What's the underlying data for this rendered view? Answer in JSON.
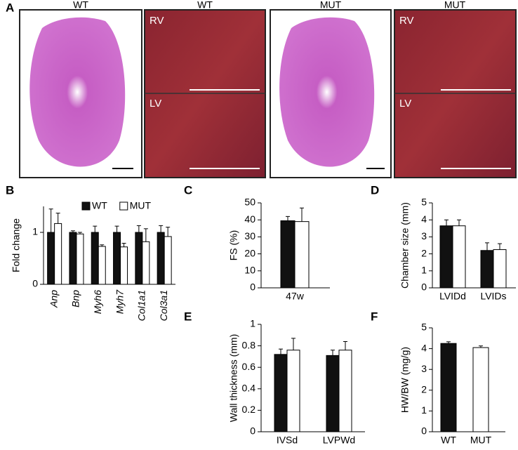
{
  "panel_a": {
    "letter": "A",
    "images": [
      {
        "label": "WT"
      },
      {
        "label": "WT",
        "top": "RV",
        "bottom": "LV"
      },
      {
        "label": "MUT"
      },
      {
        "label": "MUT",
        "top": "RV",
        "bottom": "LV"
      }
    ]
  },
  "chart_data": [
    {
      "type": "bar",
      "panel": "B",
      "ylabel": "Fold change",
      "categories": [
        "Anp",
        "Bnp",
        "Myh6",
        "Myh7",
        "Col1a1",
        "Col3a1"
      ],
      "series": [
        {
          "name": "WT",
          "color": "#111111",
          "values": [
            1,
            1,
            1,
            1,
            1,
            1
          ],
          "errors": [
            0.45,
            0.03,
            0.12,
            0.12,
            0.13,
            0.13
          ]
        },
        {
          "name": "MUT",
          "color": "#ffffff",
          "values": [
            1.17,
            0.97,
            0.73,
            0.72,
            0.82,
            0.92
          ],
          "errors": [
            0.2,
            0.03,
            0.03,
            0.07,
            0.25,
            0.18
          ]
        }
      ],
      "ylim": [
        0,
        1.5
      ],
      "yticks": [
        0,
        1
      ],
      "legend": "top",
      "italic_categories": true
    },
    {
      "type": "bar",
      "panel": "C",
      "ylabel": "FS (%)",
      "categories": [
        "47w"
      ],
      "series": [
        {
          "color": "#111111",
          "values": [
            39.5
          ],
          "errors": [
            2.5
          ]
        },
        {
          "color": "#ffffff",
          "values": [
            39
          ],
          "errors": [
            8
          ]
        }
      ],
      "ylim": [
        0,
        50
      ],
      "yticks": [
        0,
        10,
        20,
        30,
        40,
        50
      ]
    },
    {
      "type": "bar",
      "panel": "D",
      "ylabel": "Chamber size (mm)",
      "categories": [
        "LVIDd",
        "LVIDs"
      ],
      "series": [
        {
          "color": "#111111",
          "values": [
            3.65,
            2.2
          ],
          "errors": [
            0.35,
            0.45
          ]
        },
        {
          "color": "#ffffff",
          "values": [
            3.65,
            2.25
          ],
          "errors": [
            0.35,
            0.35
          ]
        }
      ],
      "ylim": [
        0,
        5
      ],
      "yticks": [
        0,
        1,
        2,
        3,
        4,
        5
      ]
    },
    {
      "type": "bar",
      "panel": "E",
      "ylabel": "Wall thickness (mm)",
      "categories": [
        "IVSd",
        "LVPWd"
      ],
      "series": [
        {
          "color": "#111111",
          "values": [
            0.72,
            0.71
          ],
          "errors": [
            0.05,
            0.05
          ]
        },
        {
          "color": "#ffffff",
          "values": [
            0.76,
            0.76
          ],
          "errors": [
            0.11,
            0.08
          ]
        }
      ],
      "ylim": [
        0,
        1
      ],
      "yticks": [
        0,
        0.2,
        0.4,
        0.6,
        0.8,
        1
      ]
    },
    {
      "type": "bar",
      "panel": "F",
      "ylabel": "HW/BW (mg/g)",
      "categories": [
        "WT",
        "MUT"
      ],
      "series": [
        {
          "colors": [
            "#111111",
            "#ffffff"
          ],
          "values": [
            4.25,
            4.05
          ],
          "errors": [
            0.08,
            0.08
          ]
        }
      ],
      "ylim": [
        0,
        5
      ],
      "yticks": [
        0,
        1,
        2,
        3,
        4,
        5
      ]
    }
  ]
}
